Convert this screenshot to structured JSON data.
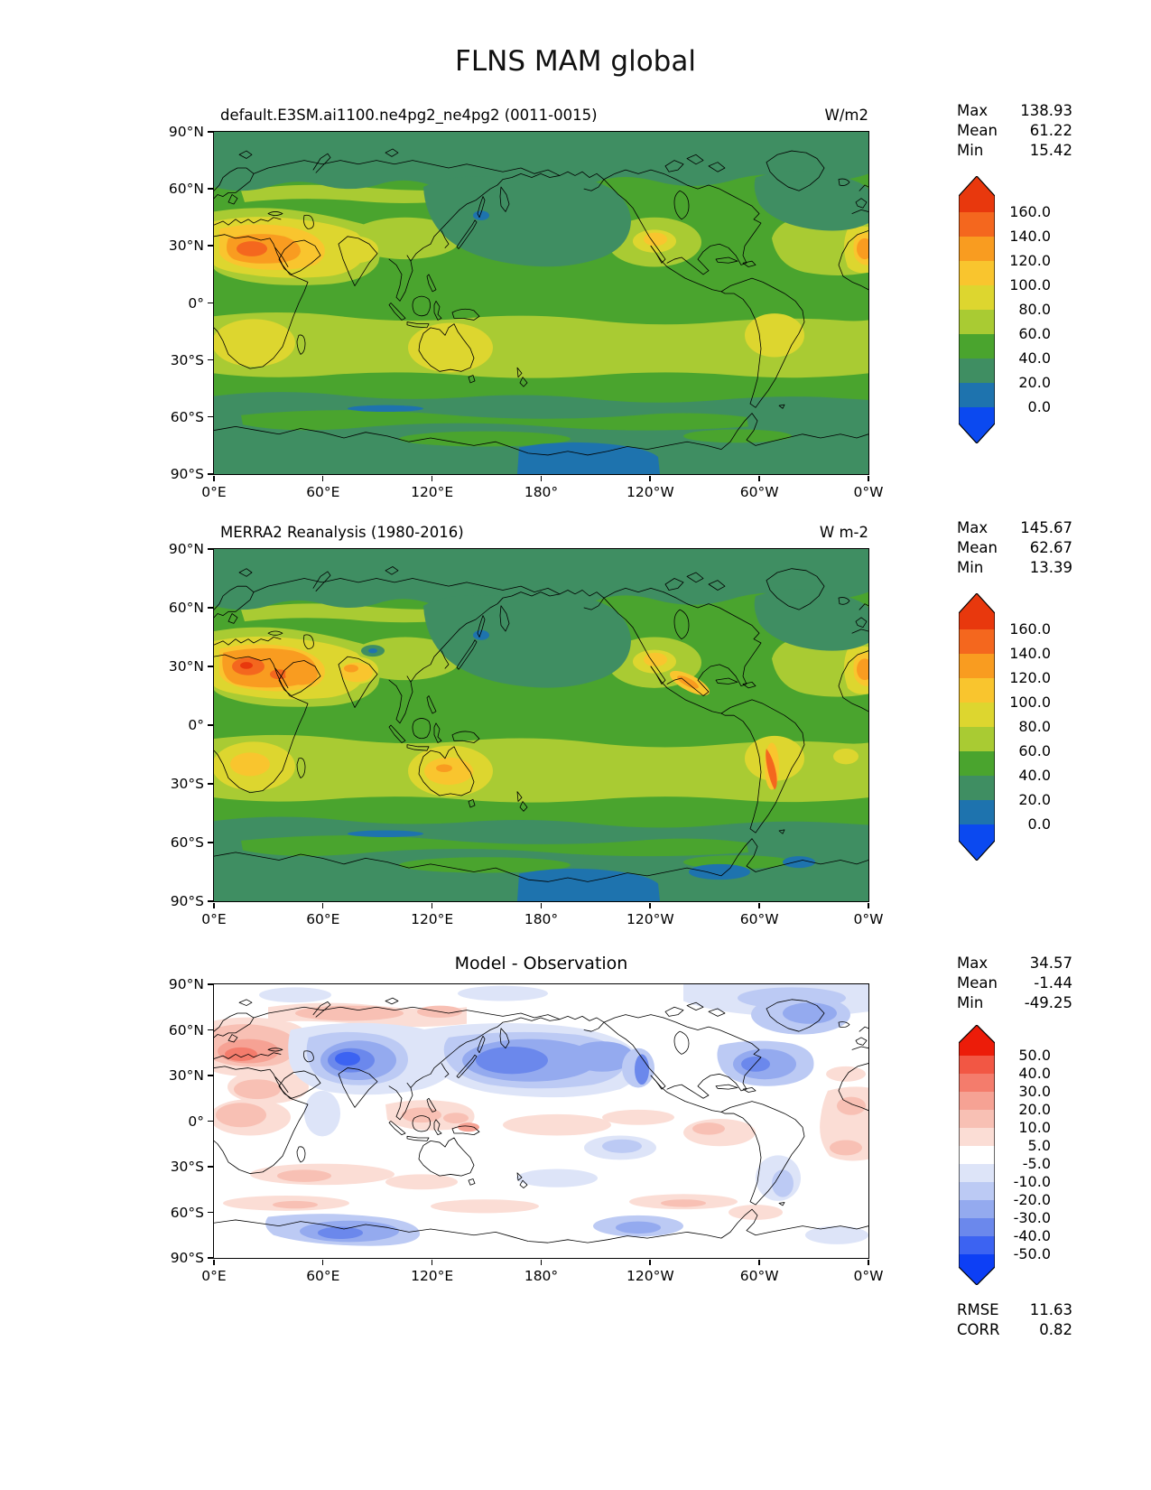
{
  "figure_title": "FLNS MAM global",
  "axes": {
    "x_ticks": [
      "0°E",
      "60°E",
      "120°E",
      "180°",
      "120°W",
      "60°W",
      "0°W"
    ],
    "y_ticks": [
      "90°N",
      "60°N",
      "30°N",
      "0°",
      "30°S",
      "60°S",
      "90°S"
    ]
  },
  "panels": [
    {
      "name": "model",
      "subtitle": "default.E3SM.ai1100.ne4pg2_ne4pg2 (0011-0015)",
      "units": "W/m2",
      "stats": [
        {
          "label": "Max",
          "value": "138.93"
        },
        {
          "label": "Mean",
          "value": "61.22"
        },
        {
          "label": "Min",
          "value": "15.42"
        }
      ],
      "colorbar": {
        "labels": [
          "160.0",
          "140.0",
          "120.0",
          "100.0",
          "80.0",
          "60.0",
          "40.0",
          "20.0",
          "0.0"
        ],
        "colors_top_to_bottom": [
          "#e8380d",
          "#f4671e",
          "#f99c20",
          "#f9c52e",
          "#ddd62f",
          "#a9cb33",
          "#4aa42e",
          "#3f8e62",
          "#1e73ae",
          "#0b49f0"
        ]
      }
    },
    {
      "name": "observation",
      "subtitle": "MERRA2 Reanalysis (1980-2016)",
      "units": "W m-2",
      "stats": [
        {
          "label": "Max",
          "value": "145.67"
        },
        {
          "label": "Mean",
          "value": "62.67"
        },
        {
          "label": "Min",
          "value": "13.39"
        }
      ],
      "colorbar": {
        "labels": [
          "160.0",
          "140.0",
          "120.0",
          "100.0",
          "80.0",
          "60.0",
          "40.0",
          "20.0",
          "0.0"
        ],
        "colors_top_to_bottom": [
          "#e8380d",
          "#f4671e",
          "#f99c20",
          "#f9c52e",
          "#ddd62f",
          "#a9cb33",
          "#4aa42e",
          "#3f8e62",
          "#1e73ae",
          "#0b49f0"
        ]
      }
    },
    {
      "name": "difference",
      "subtitle": "Model - Observation",
      "units": "",
      "stats": [
        {
          "label": "Max",
          "value": "34.57"
        },
        {
          "label": "Mean",
          "value": "-1.44"
        },
        {
          "label": "Min",
          "value": "-49.25"
        }
      ],
      "colorbar": {
        "labels": [
          "50.0",
          "40.0",
          "30.0",
          "20.0",
          "10.0",
          "5.0",
          "-5.0",
          "-10.0",
          "-20.0",
          "-30.0",
          "-40.0",
          "-50.0"
        ],
        "colors_top_to_bottom": [
          "#ec1c09",
          "#f25744",
          "#f47c6c",
          "#f6a294",
          "#f8c0b4",
          "#fbddd5",
          "#ffffff",
          "#dde4f8",
          "#bccaf4",
          "#94aaef",
          "#6b88ec",
          "#3c63f2",
          "#0d3ff5"
        ]
      },
      "extra_stats": [
        {
          "label": "RMSE",
          "value": "11.63"
        },
        {
          "label": "CORR",
          "value": "0.82"
        }
      ]
    }
  ],
  "chart_data": [
    {
      "type": "heatmap",
      "subtype": "filled_contour_world_map",
      "title": "default.E3SM.ai1100.ne4pg2_ne4pg2 (0011-0015)",
      "variable": "FLNS",
      "season": "MAM",
      "region": "global",
      "units": "W/m2",
      "lon_ticks": [
        "0°E",
        "60°E",
        "120°E",
        "180°",
        "120°W",
        "60°W",
        "0°W"
      ],
      "lat_ticks": [
        "90°N",
        "60°N",
        "30°N",
        "0°",
        "30°S",
        "60°S",
        "90°S"
      ],
      "contour_levels": [
        0,
        20,
        40,
        60,
        80,
        100,
        120,
        140,
        160
      ],
      "palette_low_to_high": [
        "#0b49f0",
        "#1e73ae",
        "#3f8e62",
        "#4aa42e",
        "#a9cb33",
        "#ddd62f",
        "#f9c52e",
        "#f99c20",
        "#f4671e",
        "#e8380d"
      ],
      "colorbar_extend": "both",
      "stats": {
        "max": 138.93,
        "mean": 61.22,
        "min": 15.42
      }
    },
    {
      "type": "heatmap",
      "subtype": "filled_contour_world_map",
      "title": "MERRA2 Reanalysis (1980-2016)",
      "variable": "FLNS",
      "season": "MAM",
      "region": "global",
      "units": "W m-2",
      "lon_ticks": [
        "0°E",
        "60°E",
        "120°E",
        "180°",
        "120°W",
        "60°W",
        "0°W"
      ],
      "lat_ticks": [
        "90°N",
        "60°N",
        "30°N",
        "0°",
        "30°S",
        "60°S",
        "90°S"
      ],
      "contour_levels": [
        0,
        20,
        40,
        60,
        80,
        100,
        120,
        140,
        160
      ],
      "palette_low_to_high": [
        "#0b49f0",
        "#1e73ae",
        "#3f8e62",
        "#4aa42e",
        "#a9cb33",
        "#ddd62f",
        "#f9c52e",
        "#f99c20",
        "#f4671e",
        "#e8380d"
      ],
      "colorbar_extend": "both",
      "stats": {
        "max": 145.67,
        "mean": 62.67,
        "min": 13.39
      }
    },
    {
      "type": "heatmap",
      "subtype": "filled_contour_world_map",
      "title": "Model - Observation",
      "variable": "FLNS difference",
      "season": "MAM",
      "region": "global",
      "lon_ticks": [
        "0°E",
        "60°E",
        "120°E",
        "180°",
        "120°W",
        "60°W",
        "0°W"
      ],
      "lat_ticks": [
        "90°N",
        "60°N",
        "30°N",
        "0°",
        "30°S",
        "60°S",
        "90°S"
      ],
      "contour_levels": [
        -50,
        -40,
        -30,
        -20,
        -10,
        -5,
        5,
        10,
        20,
        30,
        40,
        50
      ],
      "palette_low_to_high": [
        "#0d3ff5",
        "#3c63f2",
        "#6b88ec",
        "#94aaef",
        "#bccaf4",
        "#dde4f8",
        "#ffffff",
        "#fbddd5",
        "#f8c0b4",
        "#f6a294",
        "#f47c6c",
        "#f25744",
        "#ec1c09"
      ],
      "colorbar_extend": "both",
      "stats": {
        "max": 34.57,
        "mean": -1.44,
        "min": -49.25,
        "rmse": 11.63,
        "corr": 0.82
      }
    }
  ]
}
